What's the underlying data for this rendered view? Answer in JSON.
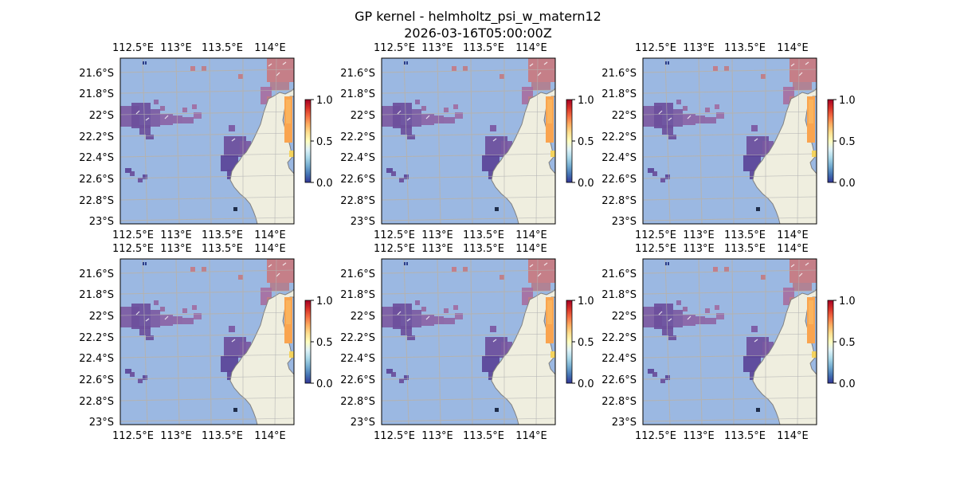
{
  "figure": {
    "title_line1": "GP kernel - helmholtz_psi_w_matern12",
    "title_line2": "2026-03-16T05:00:00Z"
  },
  "map": {
    "lon_ticks": [
      "112.5°E",
      "113°E",
      "113.5°E",
      "114°E"
    ],
    "lat_ticks": [
      "21.6°S",
      "21.8°S",
      "22°S",
      "22.2°S",
      "22.4°S",
      "22.6°S",
      "22.8°S",
      "23°S"
    ],
    "extent": {
      "lon": [
        112.3,
        114.2
      ],
      "lat": [
        -23.0,
        -21.45
      ]
    },
    "ocean_color": "#9bb8e2",
    "land_color": "#efeedf",
    "coast_color": "#808080",
    "grid_color": "#b3b3b3"
  },
  "colorbar": {
    "tick_labels": [
      "0.0",
      "0.5",
      "1.0"
    ],
    "range": [
      0.0,
      1.0
    ],
    "colormap": "RdYlBu_r"
  },
  "panels": [
    {
      "id": "panel-1",
      "row": 1,
      "col": 1
    },
    {
      "id": "panel-2",
      "row": 1,
      "col": 2
    },
    {
      "id": "panel-3",
      "row": 1,
      "col": 3
    },
    {
      "id": "panel-4",
      "row": 2,
      "col": 1
    },
    {
      "id": "panel-5",
      "row": 2,
      "col": 2
    },
    {
      "id": "panel-6",
      "row": 2,
      "col": 3
    }
  ]
}
